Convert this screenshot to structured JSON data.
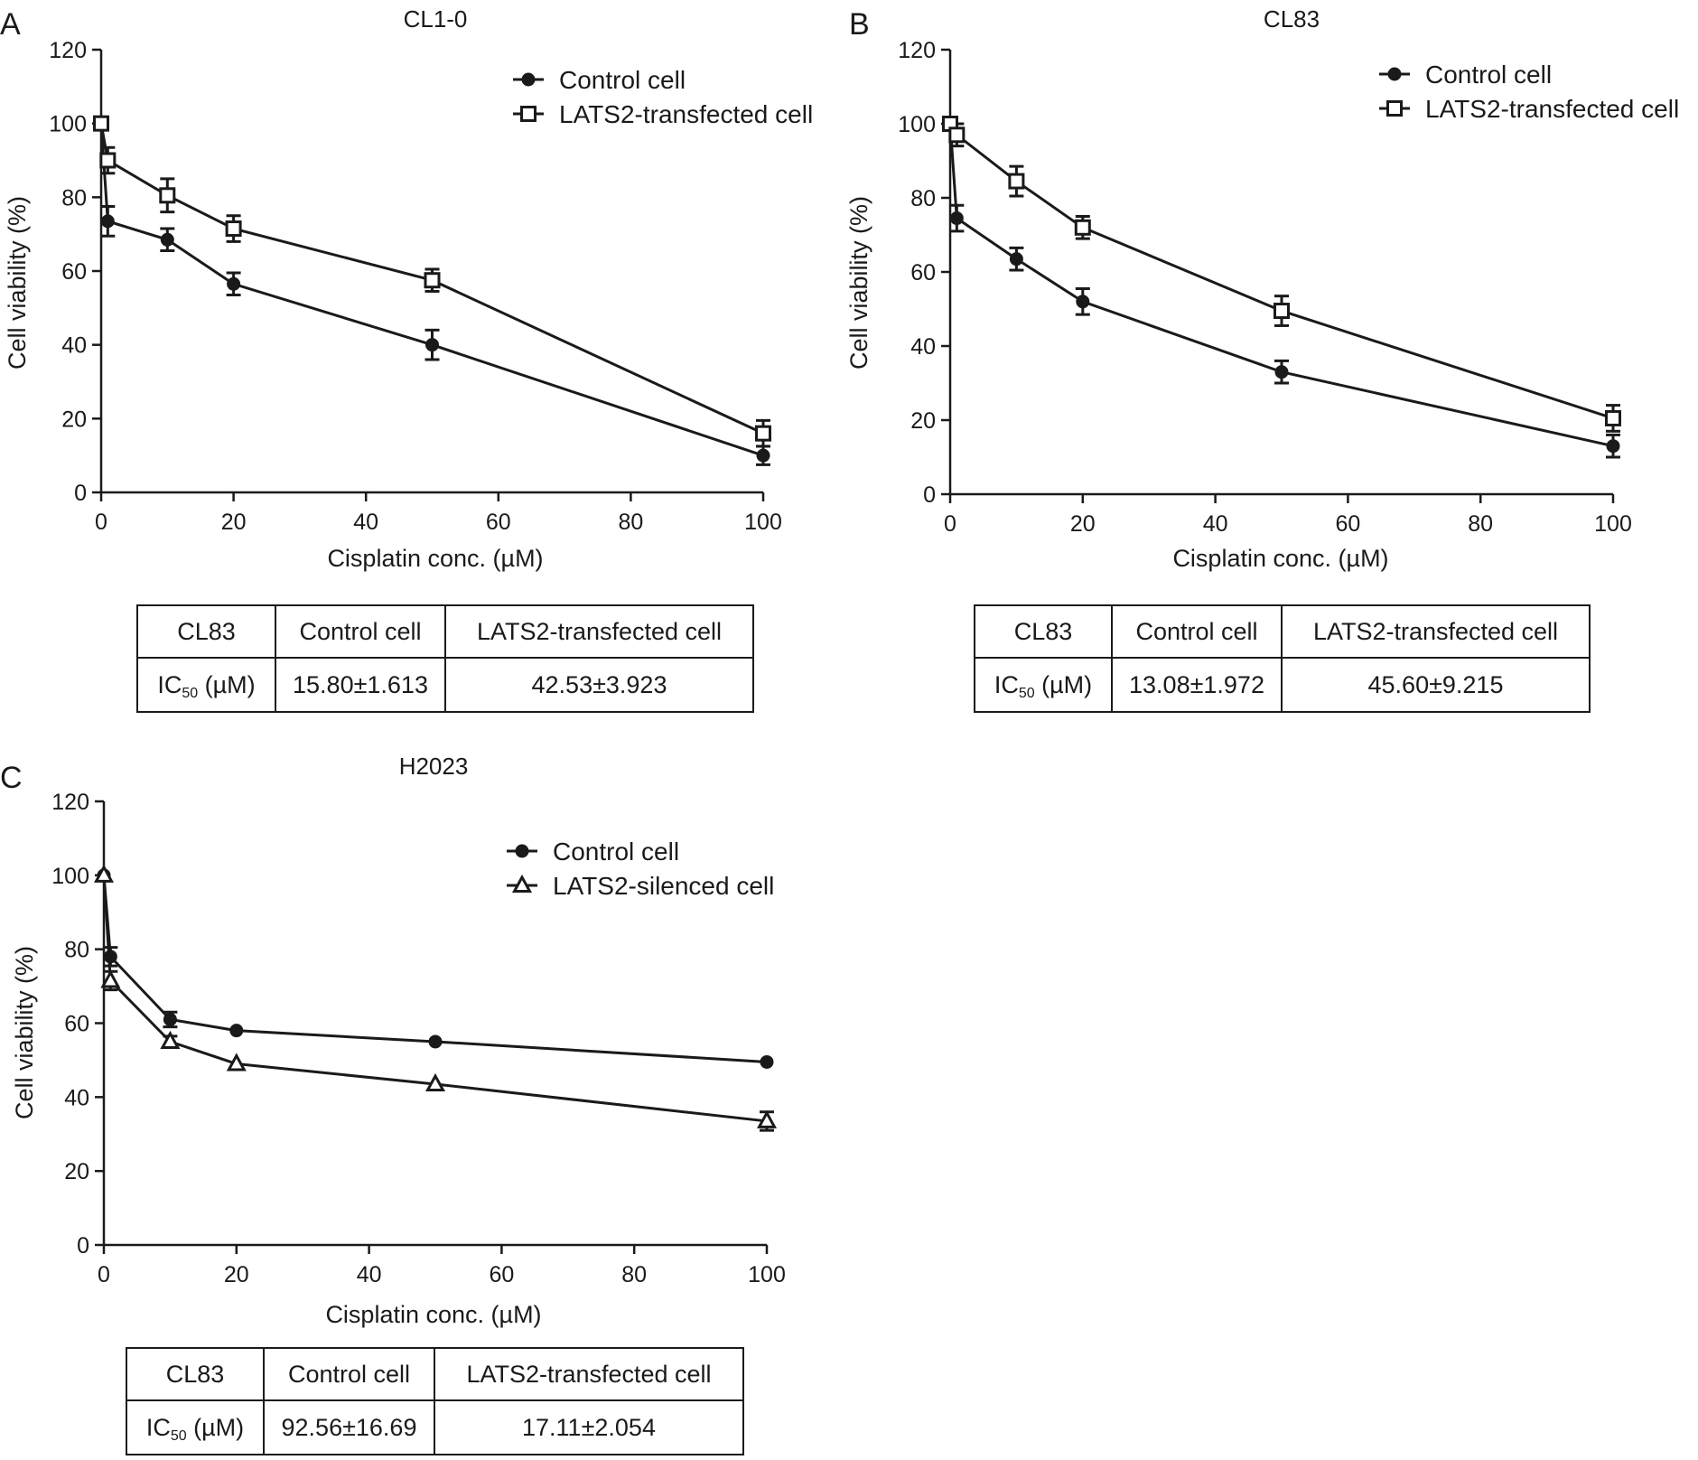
{
  "chart_data": [
    {
      "panel": "A",
      "type": "line",
      "title": "CL1-0",
      "xlabel": "Cisplatin conc. (µM)",
      "ylabel": "Cell viability (%)",
      "xlim": [
        0,
        100
      ],
      "ylim": [
        0,
        120
      ],
      "xticks": [
        0,
        20,
        40,
        60,
        80,
        100
      ],
      "yticks": [
        0,
        20,
        40,
        60,
        80,
        100,
        120
      ],
      "grid": false,
      "legend_position": "top-right",
      "series": [
        {
          "name": "Control cell",
          "marker": "filled-circle",
          "x": [
            0,
            1,
            10,
            20,
            50,
            100
          ],
          "y": [
            100,
            73.5,
            68.5,
            56.5,
            40,
            10
          ],
          "error": [
            0,
            4,
            3,
            3,
            4,
            2.5
          ]
        },
        {
          "name": "LATS2-transfected cell",
          "marker": "open-square",
          "x": [
            0,
            1,
            10,
            20,
            50,
            100
          ],
          "y": [
            100,
            90,
            80.5,
            71.5,
            57.5,
            16
          ],
          "error": [
            0,
            3.5,
            4.5,
            3.5,
            3,
            3.5
          ]
        }
      ],
      "table": {
        "headers": [
          "CL83",
          "Control cell",
          "LATS2-transfected cell"
        ],
        "row_label_main": "IC",
        "row_label_sub": "50",
        "row_label_unit": " (µM)",
        "values": [
          "15.80±1.613",
          "42.53±3.923"
        ]
      }
    },
    {
      "panel": "B",
      "type": "line",
      "title": "CL83",
      "xlabel": "Cisplatin conc. (µM)",
      "ylabel": "Cell viability (%)",
      "xlim": [
        0,
        100
      ],
      "ylim": [
        0,
        120
      ],
      "xticks": [
        0,
        20,
        40,
        60,
        80,
        100
      ],
      "yticks": [
        0,
        20,
        40,
        60,
        80,
        100,
        120
      ],
      "grid": false,
      "legend_position": "top-right",
      "series": [
        {
          "name": "Control cell",
          "marker": "filled-circle",
          "x": [
            0,
            1,
            10,
            20,
            50,
            100
          ],
          "y": [
            100,
            74.5,
            63.5,
            52,
            33,
            13
          ],
          "error": [
            0,
            3.5,
            3,
            3.5,
            3,
            3
          ]
        },
        {
          "name": "LATS2-transfected cell",
          "marker": "open-square",
          "x": [
            0,
            1,
            10,
            20,
            50,
            100
          ],
          "y": [
            100,
            97,
            84.5,
            72,
            49.5,
            20.5
          ],
          "error": [
            0,
            3,
            4,
            3,
            4,
            3.5
          ]
        }
      ],
      "table": {
        "headers": [
          "CL83",
          "Control cell",
          "LATS2-transfected cell"
        ],
        "row_label_main": "IC",
        "row_label_sub": "50",
        "row_label_unit": " (µM)",
        "values": [
          "13.08±1.972",
          "45.60±9.215"
        ]
      }
    },
    {
      "panel": "C",
      "type": "line",
      "title": "H2023",
      "xlabel": "Cisplatin conc. (µM)",
      "ylabel": "Cell viability (%)",
      "xlim": [
        0,
        100
      ],
      "ylim": [
        0,
        120
      ],
      "xticks": [
        0,
        20,
        40,
        60,
        80,
        100
      ],
      "yticks": [
        0,
        20,
        40,
        60,
        80,
        100,
        120
      ],
      "grid": false,
      "legend_position": "top-right",
      "series": [
        {
          "name": "Control cell",
          "marker": "filled-circle",
          "x": [
            0,
            1,
            10,
            20,
            50,
            100
          ],
          "y": [
            100,
            78,
            61,
            58,
            55,
            49.5
          ],
          "error": [
            0,
            2.5,
            2,
            0,
            0,
            0
          ]
        },
        {
          "name": "LATS2-silenced cell",
          "marker": "open-triangle",
          "x": [
            0,
            1,
            10,
            20,
            50,
            100
          ],
          "y": [
            100,
            71.5,
            55,
            49,
            43.5,
            33.5
          ],
          "error": [
            0,
            2.5,
            1.5,
            0,
            0,
            2.5
          ]
        }
      ],
      "table": {
        "headers": [
          "CL83",
          "Control cell",
          "LATS2-transfected cell"
        ],
        "row_label_main": "IC",
        "row_label_sub": "50",
        "row_label_unit": " (µM)",
        "values": [
          "92.56±16.69",
          "17.11±2.054"
        ]
      }
    }
  ]
}
